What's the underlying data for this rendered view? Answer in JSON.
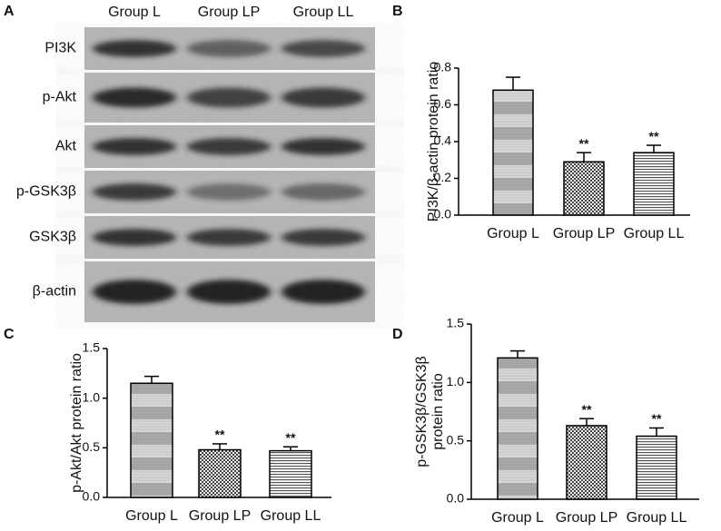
{
  "blot": {
    "panel": "A",
    "lanes": [
      "Group L",
      "Group LP",
      "Group LL"
    ],
    "rows": [
      "PI3K",
      "p-Akt",
      "Akt",
      "p-GSK3β",
      "GSK3β",
      "β-actin"
    ]
  },
  "chart_data": [
    {
      "type": "bar",
      "panel": "B",
      "ylabel": [
        "PI3K/β-actin protein ratio"
      ],
      "categories": [
        "Group L",
        "Group LP",
        "Group LL"
      ],
      "values": [
        0.68,
        0.29,
        0.34
      ],
      "errors": [
        0.07,
        0.05,
        0.04
      ],
      "annotations": [
        null,
        "**",
        "**"
      ],
      "ylim": [
        0,
        0.8
      ],
      "yticks": [
        {
          "value": 0,
          "label": "0.0"
        },
        0.2,
        0.4,
        0.6,
        0.8
      ]
    },
    {
      "type": "bar",
      "panel": "C",
      "ylabel": [
        "p-Akt/Akt protein ratio"
      ],
      "categories": [
        "Group L",
        "Group LP",
        "Group LL"
      ],
      "values": [
        1.15,
        0.48,
        0.47
      ],
      "errors": [
        0.07,
        0.06,
        0.04
      ],
      "annotations": [
        null,
        "**",
        "**"
      ],
      "ylim": [
        0,
        1.5
      ],
      "yticks": [
        {
          "value": 0,
          "label": "0.0"
        },
        0.5,
        {
          "value": 1,
          "label": "1.0"
        },
        1.5
      ]
    },
    {
      "type": "bar",
      "panel": "D",
      "ylabel": [
        "p-GSK3β/GSK3β",
        "protein ratio"
      ],
      "categories": [
        "Group L",
        "Group LP",
        "Group LL"
      ],
      "values": [
        1.21,
        0.63,
        0.54
      ],
      "errors": [
        0.06,
        0.06,
        0.07
      ],
      "annotations": [
        null,
        "**",
        "**"
      ],
      "ylim": [
        0,
        1.5
      ],
      "yticks": [
        {
          "value": 0,
          "label": "0.0"
        },
        0.5,
        {
          "value": 1,
          "label": "1.0"
        },
        1.5
      ]
    }
  ]
}
